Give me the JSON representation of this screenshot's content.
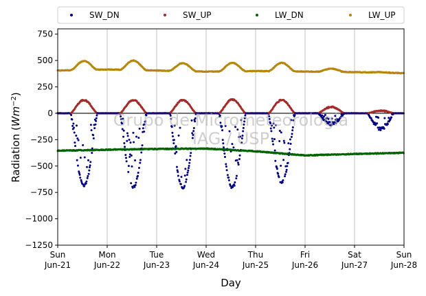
{
  "chart_data": {
    "type": "scatter",
    "xlabel": "Day",
    "ylabel_main": "Radiation (",
    "ylabel_unit_base": "Wm",
    "ylabel_unit_exp": "−2",
    "ylabel_close": ")",
    "ylim": [
      -1250,
      800
    ],
    "xlim": [
      0,
      7
    ],
    "grid_x": true,
    "grid_y": false,
    "legend_position": "top",
    "watermark_line1": "Grupo de Micrometeorologia",
    "watermark_line2": "IAG / USP",
    "y_ticks": [
      750,
      500,
      250,
      0,
      -250,
      -500,
      -750,
      -1000,
      -1250
    ],
    "y_tick_labels": [
      "750",
      "500",
      "250",
      "0",
      "−250",
      "−500",
      "−750",
      "−1000",
      "−1250"
    ],
    "x_ticks": [
      {
        "day": 0,
        "line1": "Sun",
        "line2": "Jun-21"
      },
      {
        "day": 1,
        "line1": "Mon",
        "line2": "Jun-22"
      },
      {
        "day": 2,
        "line1": "Tue",
        "line2": "Jun-23"
      },
      {
        "day": 3,
        "line1": "Wed",
        "line2": "Jun-24"
      },
      {
        "day": 4,
        "line1": "Thu",
        "line2": "Jun-25"
      },
      {
        "day": 5,
        "line1": "Fri",
        "line2": "Jun-26"
      },
      {
        "day": 6,
        "line1": "Sat",
        "line2": "Jun-27"
      },
      {
        "day": 7,
        "line1": "Sun",
        "line2": "Jun-28"
      }
    ],
    "series": [
      {
        "name": "SW_DN",
        "color": "#00007f",
        "daily_peak": [
          -690,
          -700,
          -700,
          -700,
          -650,
          -100,
          -150
        ],
        "baseline": 0
      },
      {
        "name": "SW_UP",
        "color": "#a52a2a",
        "daily_peak": [
          125,
          125,
          125,
          130,
          125,
          60,
          25
        ],
        "baseline": 0
      },
      {
        "name": "LW_DN",
        "color": "#006400",
        "daily_values": [
          -355,
          -345,
          -338,
          -335,
          -360,
          -400,
          -385,
          -375
        ]
      },
      {
        "name": "LW_UP",
        "color": "#b8860b",
        "daily_base": [
          405,
          415,
          405,
          395,
          400,
          395,
          390,
          380
        ],
        "daily_peak": [
          490,
          505,
          480,
          475,
          480,
          425,
          395
        ]
      }
    ]
  }
}
